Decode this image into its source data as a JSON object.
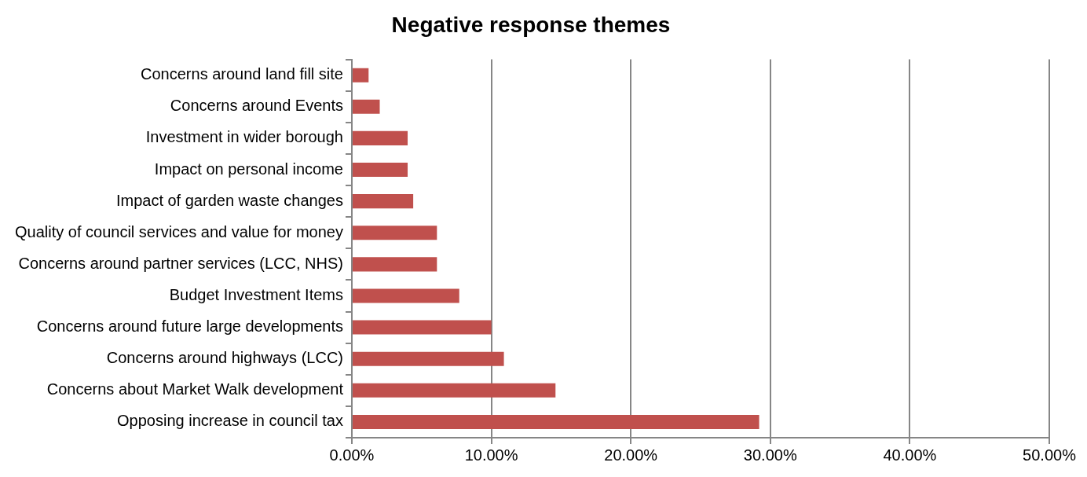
{
  "chart_data": {
    "type": "bar",
    "orientation": "horizontal",
    "title": "Negative response themes",
    "categories": [
      "Concerns around land fill site",
      "Concerns around Events",
      "Investment in wider borough",
      "Impact on personal income",
      "Impact of garden waste changes",
      "Quality of council services and value for money",
      "Concerns around partner services (LCC, NHS)",
      "Budget Investment Items",
      "Concerns around future large developments",
      "Concerns around highways (LCC)",
      "Concerns about Market Walk development",
      "Opposing increase in council tax"
    ],
    "values": [
      1.2,
      2.0,
      4.0,
      4.0,
      4.4,
      6.1,
      6.1,
      7.7,
      10.0,
      10.9,
      14.6,
      29.2
    ],
    "color": "#c0504d",
    "xlim": [
      0,
      50
    ],
    "xticks": [
      {
        "value": 0,
        "label": "0.00%"
      },
      {
        "value": 10,
        "label": "10.00%"
      },
      {
        "value": 20,
        "label": "20.00%"
      },
      {
        "value": 30,
        "label": "30.00%"
      },
      {
        "value": 40,
        "label": "40.00%"
      },
      {
        "value": 50,
        "label": "50.00%"
      }
    ],
    "grid": "x",
    "legend": false
  }
}
